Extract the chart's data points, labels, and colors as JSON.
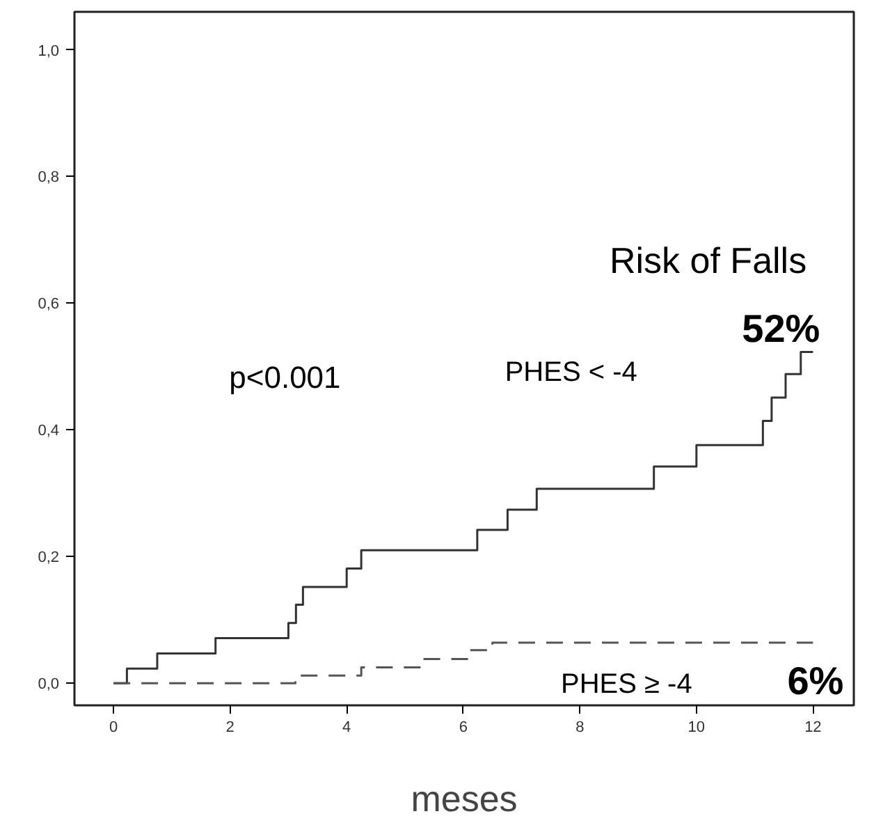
{
  "chart_data": {
    "type": "step",
    "xlabel": "meses",
    "xlim": [
      -0.67,
      12.7
    ],
    "ylim": [
      -0.035,
      1.06
    ],
    "xticks": [
      0,
      2,
      4,
      6,
      8,
      10,
      12
    ],
    "yticks": [
      {
        "value": 0,
        "label": "0,0"
      },
      {
        "value": 0.2,
        "label": "0,2"
      },
      {
        "value": 0.4,
        "label": "0,4"
      },
      {
        "value": 0.6,
        "label": "0,6"
      },
      {
        "value": 0.8,
        "label": "0,8"
      },
      {
        "value": 1.0,
        "label": "1,0"
      }
    ],
    "grid": false,
    "marker": "none",
    "series": [
      {
        "name": "PHES < -4",
        "color": "#333333",
        "line_style": "solid",
        "x": [
          0,
          0.23,
          0.75,
          1.75,
          3.0,
          3.13,
          3.25,
          4.0,
          4.25,
          6.24,
          6.76,
          7.26,
          9.27,
          10.0,
          11.14,
          11.29,
          11.53,
          11.79,
          12
        ],
        "values": [
          0,
          0.023,
          0.047,
          0.071,
          0.095,
          0.124,
          0.152,
          0.181,
          0.21,
          0.242,
          0.274,
          0.307,
          0.342,
          0.376,
          0.414,
          0.451,
          0.488,
          0.523,
          0.523
        ]
      },
      {
        "name": "PHES ≥ -4",
        "color": "#555555",
        "line_style": "dashed",
        "x": [
          0,
          3.12,
          4.25,
          5.27,
          6.12,
          6.5,
          12
        ],
        "values": [
          0,
          0.012,
          0.025,
          0.038,
          0.052,
          0.064,
          0.064
        ]
      }
    ],
    "annotations": [
      "Risk of Falls",
      "p<0.001",
      {
        "text": "52%",
        "x": 12,
        "y": 0.523
      },
      {
        "text": "6%",
        "x": 12,
        "y": 0.064
      }
    ]
  }
}
